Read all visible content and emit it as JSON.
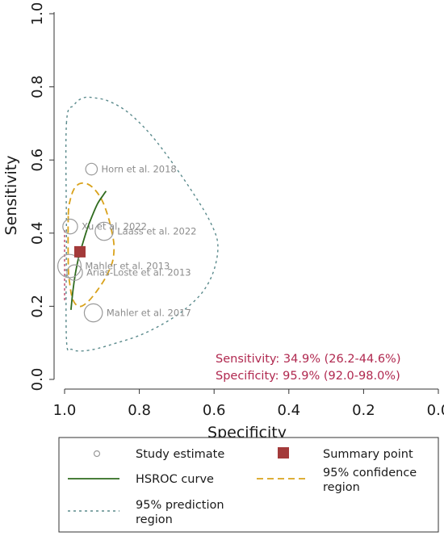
{
  "chart_data": {
    "type": "scatter",
    "title": "",
    "xlabel": "Specificity",
    "ylabel": "Sensitivity",
    "xlim": [
      1.0,
      0.0
    ],
    "ylim": [
      0.0,
      1.0
    ],
    "x_reversed": true,
    "x_ticks": [
      "1.0",
      "0.8",
      "0.6",
      "0.4",
      "0.2",
      "0.0"
    ],
    "y_ticks": [
      "0.0",
      "0.2",
      "0.4",
      "0.6",
      "0.8",
      "1.0"
    ],
    "grid": false,
    "studies": [
      {
        "label": "Horn et al. 2018",
        "specificity": 0.928,
        "sensitivity": 0.575,
        "weight": 0.2
      },
      {
        "label": "Xu et al. 2022",
        "specificity": 0.985,
        "sensitivity": 0.418,
        "weight": 0.32
      },
      {
        "label": "Laass et al. 2022",
        "specificity": 0.894,
        "sensitivity": 0.405,
        "weight": 0.45
      },
      {
        "label": "Mahler et al. 2013",
        "specificity": 0.987,
        "sensitivity": 0.31,
        "weight": 0.65
      },
      {
        "label": "Arias-Loste et al. 2013",
        "specificity": 0.973,
        "sensitivity": 0.292,
        "weight": 0.35
      },
      {
        "label": "Mahler et al. 2017",
        "specificity": 0.923,
        "sensitivity": 0.182,
        "weight": 0.45
      }
    ],
    "summary_point": {
      "specificity": 0.959,
      "sensitivity": 0.349
    },
    "hsroc_curve": {
      "specificity": [
        0.983,
        0.978,
        0.971,
        0.962,
        0.952,
        0.94,
        0.927,
        0.912,
        0.896,
        0.889
      ],
      "sensitivity": [
        0.19,
        0.24,
        0.29,
        0.335,
        0.37,
        0.41,
        0.445,
        0.48,
        0.505,
        0.515
      ]
    },
    "confidence_region": {
      "specificity": [
        0.99,
        0.985,
        0.975,
        0.96,
        0.94,
        0.92,
        0.9,
        0.885,
        0.875,
        0.868,
        0.87,
        0.88,
        0.895,
        0.915,
        0.935,
        0.955,
        0.97,
        0.98,
        0.986,
        0.99
      ],
      "sensitivity": [
        0.45,
        0.49,
        0.52,
        0.535,
        0.535,
        0.52,
        0.49,
        0.45,
        0.41,
        0.37,
        0.33,
        0.3,
        0.27,
        0.24,
        0.215,
        0.2,
        0.205,
        0.225,
        0.26,
        0.31
      ]
    },
    "prediction_region": {
      "specificity": [
        0.995,
        0.975,
        0.95,
        0.92,
        0.88,
        0.83,
        0.77,
        0.71,
        0.65,
        0.61,
        0.59,
        0.6,
        0.63,
        0.68,
        0.74,
        0.8,
        0.86,
        0.91,
        0.95,
        0.98,
        0.995,
        0.995
      ],
      "sensitivity": [
        0.7,
        0.75,
        0.77,
        0.77,
        0.76,
        0.73,
        0.67,
        0.59,
        0.5,
        0.43,
        0.37,
        0.3,
        0.24,
        0.19,
        0.15,
        0.12,
        0.1,
        0.085,
        0.078,
        0.082,
        0.11,
        0.4
      ]
    },
    "summary_text": [
      "Sensitivity: 34.9% (26.2-44.6%)",
      "Specificity: 95.9% (92.0-98.0%)"
    ],
    "legend": {
      "study_estimate": "Study estimate",
      "summary_point": "Summary point",
      "hsroc_curve": "HSROC curve",
      "confidence_region": [
        "95% confidence",
        "region"
      ],
      "prediction_region": [
        "95% prediction",
        "region"
      ]
    },
    "colors": {
      "study": "#9a9a9a",
      "summary_point": "#a33a3a",
      "hsroc": "#2f6b1e",
      "confidence": "#d9a21b",
      "prediction": "#5a8a8c",
      "summary_text": "#b0284f",
      "vertical_line": "#c05070"
    },
    "legend_placement": "bottom"
  }
}
